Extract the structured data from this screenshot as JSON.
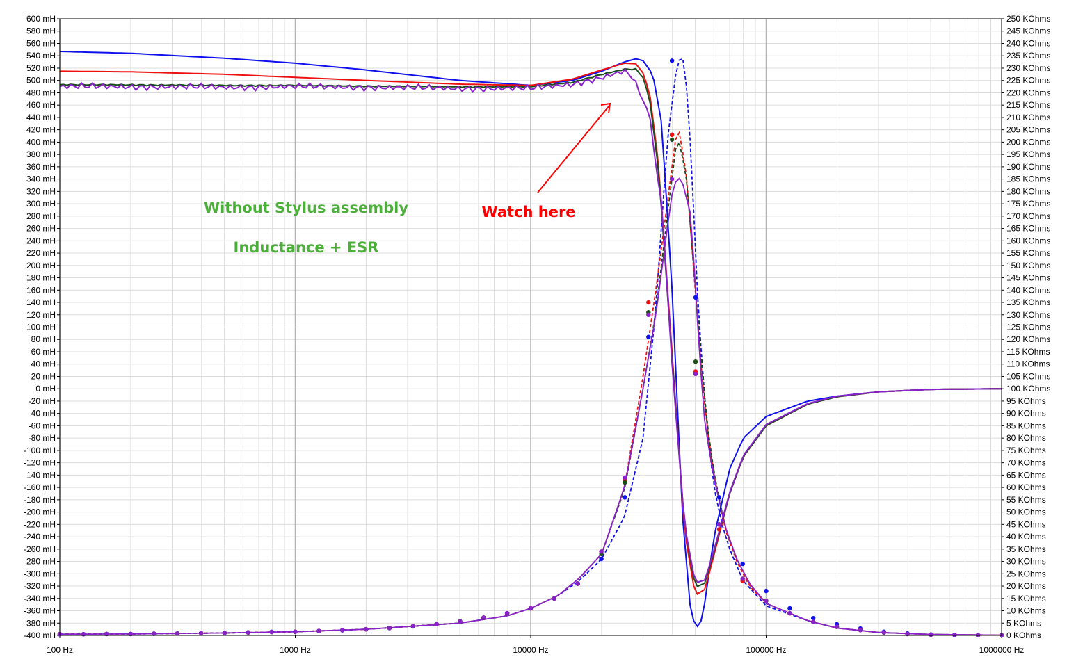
{
  "chart_data": {
    "type": "line",
    "title": "",
    "xlabel": "",
    "ylabel": "",
    "x_scale": "log",
    "xlim": [
      100,
      1000000
    ],
    "ylim_left": [
      -400,
      600
    ],
    "ylim_right": [
      0,
      250
    ],
    "grid": true,
    "x_tick_labels": [
      "100 Hz",
      "1000 Hz",
      "10000 Hz",
      "100000 Hz",
      "1000000 Hz"
    ],
    "x_tick_values": [
      100,
      1000,
      10000,
      100000,
      1000000
    ],
    "left_unit": "mH",
    "right_unit": "KOhms",
    "left_tick_step": 20,
    "right_tick_step": 5,
    "annotations": {
      "line1": "Without Stylus assembly",
      "line2": "Inductance + ESR",
      "watch": "Watch here"
    },
    "colors": {
      "blue": "#1010ee",
      "red": "#ee1111",
      "green": "#1a4d1a",
      "purple": "#8a22cc",
      "text_green": "#4caf3a"
    },
    "inductance_series": [
      {
        "color": "blue",
        "x": [
          100,
          200,
          500,
          1000,
          2000,
          5000,
          10000,
          15000,
          20000,
          25000,
          28000,
          30000,
          33000,
          36000,
          40000,
          44000,
          48000,
          52000,
          55000,
          60000,
          70000,
          80000,
          100000,
          150000,
          200000,
          300000,
          500000,
          1000000
        ],
        "y": [
          547,
          544,
          536,
          528,
          517,
          500,
          492,
          500,
          515,
          530,
          535,
          532,
          510,
          430,
          150,
          -200,
          -370,
          -390,
          -345,
          -240,
          -130,
          -80,
          -45,
          -20,
          -12,
          -5,
          -1,
          0
        ]
      },
      {
        "color": "red",
        "x": [
          100,
          200,
          500,
          1000,
          2000,
          5000,
          10000,
          15000,
          20000,
          25000,
          28000,
          30000,
          32000,
          35000,
          40000,
          45000,
          50000,
          55000,
          60000,
          70000,
          80000,
          100000,
          150000,
          200000,
          300000,
          500000,
          1000000
        ],
        "y": [
          515,
          514,
          510,
          505,
          500,
          494,
          492,
          502,
          517,
          528,
          527,
          512,
          480,
          360,
          50,
          -230,
          -335,
          -325,
          -270,
          -170,
          -110,
          -60,
          -25,
          -13,
          -5,
          -1,
          0
        ]
      },
      {
        "color": "green",
        "x": [
          100,
          200,
          500,
          1000,
          2000,
          5000,
          10000,
          15000,
          20000,
          25000,
          28000,
          30000,
          32000,
          35000,
          40000,
          45000,
          50000,
          55000,
          60000,
          70000,
          80000,
          100000,
          150000,
          200000,
          300000,
          500000,
          1000000
        ],
        "y": [
          493,
          493,
          492,
          492,
          491,
          490,
          490,
          497,
          510,
          518,
          518,
          505,
          470,
          350,
          40,
          -220,
          -322,
          -315,
          -265,
          -170,
          -110,
          -60,
          -25,
          -13,
          -5,
          -1,
          0
        ]
      },
      {
        "color": "purple",
        "x": [
          100,
          200,
          500,
          1000,
          2000,
          5000,
          10000,
          15000,
          20000,
          25000,
          27000,
          29000,
          32000,
          34000,
          36000,
          40000,
          45000,
          50000,
          55000,
          60000,
          70000,
          80000,
          100000,
          150000,
          200000,
          300000,
          500000,
          1000000
        ],
        "y": [
          490,
          490,
          489,
          490,
          489,
          487,
          487,
          494,
          505,
          515,
          505,
          480,
          445,
          360,
          300,
          30,
          -220,
          -315,
          -310,
          -262,
          -168,
          -108,
          -58,
          -24,
          -12,
          -5,
          -1,
          0
        ]
      }
    ],
    "esr_series": [
      {
        "color": "blue",
        "dashed": true,
        "x": [
          100,
          200,
          500,
          1000,
          2000,
          5000,
          8000,
          10000,
          13000,
          16000,
          20000,
          25000,
          30000,
          34000,
          38000,
          42000,
          45000,
          48000,
          51000,
          53000,
          56000,
          60000,
          65000,
          70000,
          80000,
          100000,
          150000,
          200000,
          300000,
          500000,
          1000000
        ],
        "y": [
          0.5,
          0.6,
          1,
          1.5,
          2.5,
          5,
          8,
          11,
          16,
          22,
          31,
          48,
          80,
          133,
          200,
          233,
          234,
          195,
          140,
          115,
          85,
          60,
          45,
          35,
          22,
          12,
          6,
          3,
          1.2,
          0.4,
          0.1
        ]
      },
      {
        "color": "red",
        "dashed": true,
        "x": [
          100,
          200,
          500,
          1000,
          2000,
          5000,
          8000,
          10000,
          13000,
          16000,
          20000,
          25000,
          30000,
          34000,
          38000,
          41500,
          43000,
          46000,
          50000,
          53000,
          56000,
          60000,
          67000,
          75000,
          85000,
          100000,
          150000,
          200000,
          300000,
          500000,
          1000000
        ],
        "y": [
          0.5,
          0.6,
          1,
          1.5,
          2.5,
          5,
          8,
          11,
          16,
          23,
          33,
          60,
          105,
          140,
          175,
          203,
          204,
          185,
          140,
          108,
          85,
          65,
          43,
          30,
          20,
          13,
          6,
          3,
          1.2,
          0.4,
          0.1
        ]
      },
      {
        "color": "green",
        "dashed": true,
        "x": [
          100,
          200,
          500,
          1000,
          2000,
          5000,
          8000,
          10000,
          13000,
          16000,
          20000,
          25000,
          30000,
          34000,
          38000,
          41500,
          43000,
          46000,
          50000,
          53000,
          56000,
          60000,
          67000,
          75000,
          85000,
          100000,
          150000,
          200000,
          300000,
          500000,
          1000000
        ],
        "y": [
          0.5,
          0.6,
          1,
          1.5,
          2.5,
          5,
          8,
          11,
          16,
          23,
          33,
          59,
          100,
          131,
          170,
          199,
          200,
          184,
          142,
          111,
          87,
          66,
          44,
          31,
          21,
          13,
          6,
          3,
          1.2,
          0.4,
          0.1
        ]
      },
      {
        "color": "purple",
        "dashed": false,
        "x": [
          100,
          200,
          500,
          1000,
          2000,
          5000,
          8000,
          10000,
          13000,
          16000,
          20000,
          25000,
          30000,
          34000,
          38000,
          40000,
          42000,
          44000,
          48000,
          52000,
          55000,
          60000,
          67000,
          75000,
          85000,
          100000,
          150000,
          200000,
          300000,
          500000,
          1000000
        ],
        "y": [
          0.5,
          0.6,
          1,
          1.5,
          2.5,
          5,
          8,
          11,
          16,
          23,
          33,
          60,
          100,
          130,
          165,
          180,
          186,
          184,
          170,
          115,
          85,
          64,
          44,
          31,
          21,
          13,
          6,
          3,
          1.2,
          0.4,
          0.1
        ]
      }
    ],
    "esr_markers": [
      {
        "color": "blue",
        "x": [
          100,
          126,
          158,
          200,
          251,
          316,
          398,
          501,
          631,
          794,
          1000,
          1259,
          1585,
          1995,
          2512,
          3162,
          3981,
          5012,
          6310,
          7943,
          10000,
          12589,
          15849,
          19953,
          25119,
          31623,
          39811,
          50119,
          63096,
          79433,
          100000,
          125893,
          158489,
          199526,
          251189,
          316228,
          398107,
          501187,
          630957,
          794328,
          1000000
        ],
        "y": [
          0.5,
          0.5,
          0.6,
          0.6,
          0.7,
          0.8,
          0.9,
          1,
          1.2,
          1.4,
          1.5,
          1.8,
          2.1,
          2.5,
          3,
          3.7,
          4.6,
          5.7,
          7.2,
          9,
          11,
          15,
          21,
          31,
          56,
          121,
          233,
          137,
          56,
          29,
          18,
          11,
          7,
          4.5,
          2.8,
          1.5,
          0.8,
          0.4,
          0.2,
          0.1,
          0.1
        ]
      },
      {
        "color": "red",
        "x": [
          100,
          126,
          158,
          200,
          251,
          316,
          398,
          501,
          631,
          794,
          1000,
          1259,
          1585,
          1995,
          2512,
          3162,
          3981,
          5012,
          6310,
          7943,
          10000,
          12589,
          15849,
          19953,
          25119,
          31623,
          39811,
          50119,
          63096,
          79433,
          100000,
          125893,
          158489,
          199526,
          251189,
          316228,
          398107,
          501187,
          630957,
          794328,
          1000000
        ],
        "y": [
          0.5,
          0.5,
          0.6,
          0.6,
          0.7,
          0.8,
          0.9,
          1,
          1.2,
          1.4,
          1.5,
          1.8,
          2.1,
          2.5,
          3,
          3.7,
          4.6,
          5.7,
          7.2,
          9,
          11,
          15,
          21,
          34,
          63,
          135,
          203,
          107,
          43,
          22,
          14,
          9,
          5.5,
          3.5,
          2.2,
          1.2,
          0.6,
          0.3,
          0.2,
          0.1,
          0.1
        ]
      },
      {
        "color": "green",
        "x": [
          100,
          126,
          158,
          200,
          251,
          316,
          398,
          501,
          631,
          794,
          1000,
          1259,
          1585,
          1995,
          2512,
          3162,
          3981,
          5012,
          6310,
          7943,
          10000,
          12589,
          15849,
          19953,
          25119,
          31623,
          39811,
          50119,
          63096,
          79433,
          100000,
          125893,
          158489,
          199526,
          251189,
          316228,
          398107,
          501187,
          630957,
          794328,
          1000000
        ],
        "y": [
          0.5,
          0.5,
          0.6,
          0.6,
          0.7,
          0.8,
          0.9,
          1,
          1.2,
          1.4,
          1.5,
          1.8,
          2.1,
          2.5,
          3,
          3.7,
          4.6,
          5.7,
          7.2,
          9,
          11,
          15,
          21,
          33,
          62,
          131,
          201,
          111,
          45,
          23,
          14,
          9,
          5.5,
          3.5,
          2.2,
          1.2,
          0.6,
          0.3,
          0.2,
          0.1,
          0.1
        ]
      },
      {
        "color": "purple",
        "x": [
          100,
          126,
          158,
          200,
          251,
          316,
          398,
          501,
          631,
          794,
          1000,
          1259,
          1585,
          1995,
          2512,
          3162,
          3981,
          5012,
          6310,
          7943,
          10000,
          12589,
          15849,
          19953,
          25119,
          31623,
          39811,
          50119,
          63096,
          79433,
          100000,
          125893,
          158489,
          199526,
          251189,
          316228,
          398107,
          501187,
          630957,
          794328,
          1000000
        ],
        "y": [
          0.5,
          0.5,
          0.6,
          0.6,
          0.7,
          0.8,
          0.9,
          1,
          1.2,
          1.4,
          1.5,
          1.8,
          2.1,
          2.5,
          3,
          3.7,
          4.6,
          5.7,
          7.2,
          9,
          11,
          15,
          21,
          34,
          64,
          130,
          185,
          106,
          45,
          23,
          14,
          9,
          5.5,
          3.5,
          2.2,
          1.2,
          0.6,
          0.3,
          0.2,
          0.1,
          0.1
        ]
      }
    ]
  }
}
